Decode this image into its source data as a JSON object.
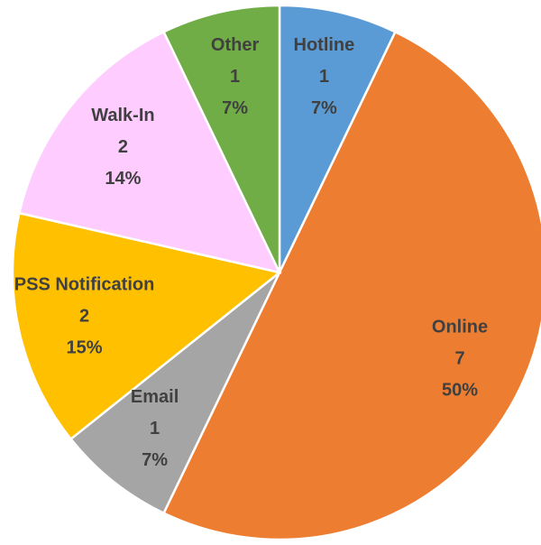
{
  "chart_data": {
    "type": "pie",
    "categories": [
      "Hotline",
      "Online",
      "Email",
      "PSS Notification",
      "Walk-In",
      "Other"
    ],
    "values": [
      1,
      7,
      1,
      2,
      2,
      1
    ],
    "percent_labels": [
      "7%",
      "50%",
      "7%",
      "15%",
      "14%",
      "7%"
    ],
    "colors": [
      "#5b9bd5",
      "#ed7d31",
      "#a5a5a5",
      "#ffc000",
      "#ffccff",
      "#70ad47"
    ]
  }
}
